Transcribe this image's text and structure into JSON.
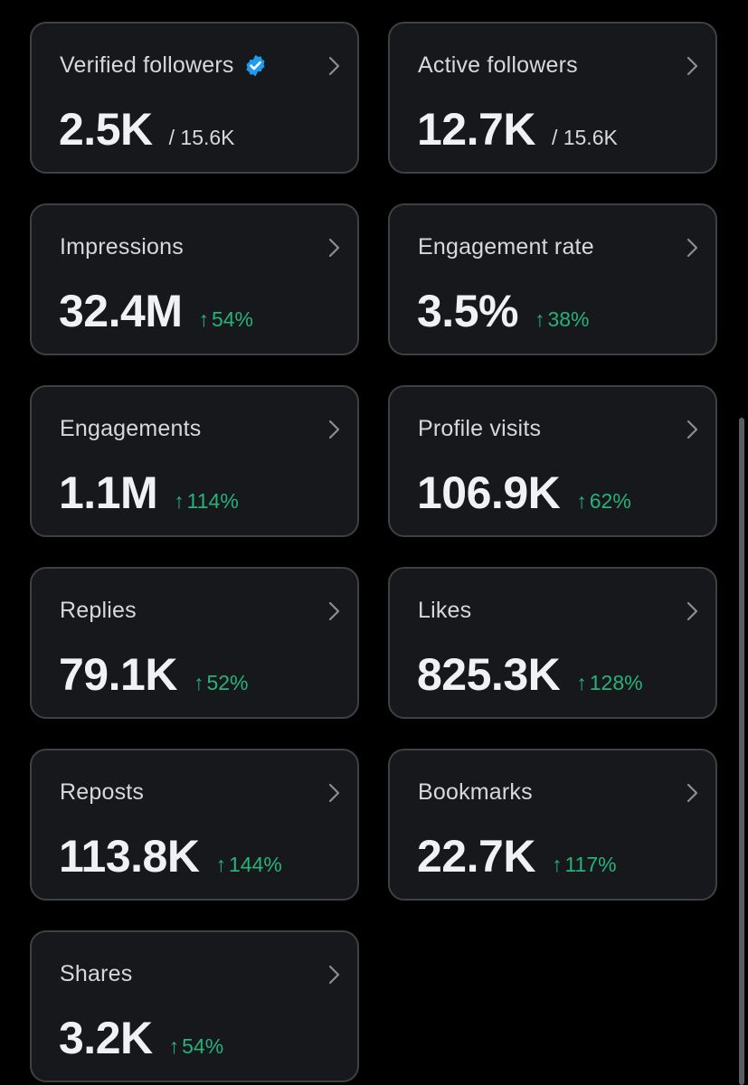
{
  "cards": [
    {
      "title": "Verified followers",
      "value": "2.5K",
      "total": "/ 15.6K",
      "verified": true
    },
    {
      "title": "Active followers",
      "value": "12.7K",
      "total": "/ 15.6K"
    },
    {
      "title": "Impressions",
      "value": "32.4M",
      "arrow": "↑",
      "change": "54%"
    },
    {
      "title": "Engagement rate",
      "value": "3.5%",
      "arrow": "↑",
      "change": "38%"
    },
    {
      "title": "Engagements",
      "value": "1.1M",
      "arrow": "↑",
      "change": "114%"
    },
    {
      "title": "Profile visits",
      "value": "106.9K",
      "arrow": "↑",
      "change": "62%"
    },
    {
      "title": "Replies",
      "value": "79.1K",
      "arrow": "↑",
      "change": "52%"
    },
    {
      "title": "Likes",
      "value": "825.3K",
      "arrow": "↑",
      "change": "128%"
    },
    {
      "title": "Reposts",
      "value": "113.8K",
      "arrow": "↑",
      "change": "144%"
    },
    {
      "title": "Bookmarks",
      "value": "22.7K",
      "arrow": "↑",
      "change": "117%"
    },
    {
      "title": "Shares",
      "value": "3.2K",
      "arrow": "↑",
      "change": "54%"
    }
  ],
  "icons": {
    "verified": "verified-badge-icon",
    "chevron": "chevron-right-icon"
  },
  "colors": {
    "background": "#000000",
    "card": "#16181c",
    "card_border": "#3e4144",
    "positive": "#27b27a",
    "verified": "#1d9bf0",
    "text_primary": "#eff1f2",
    "text_secondary": "#d6d9db"
  }
}
